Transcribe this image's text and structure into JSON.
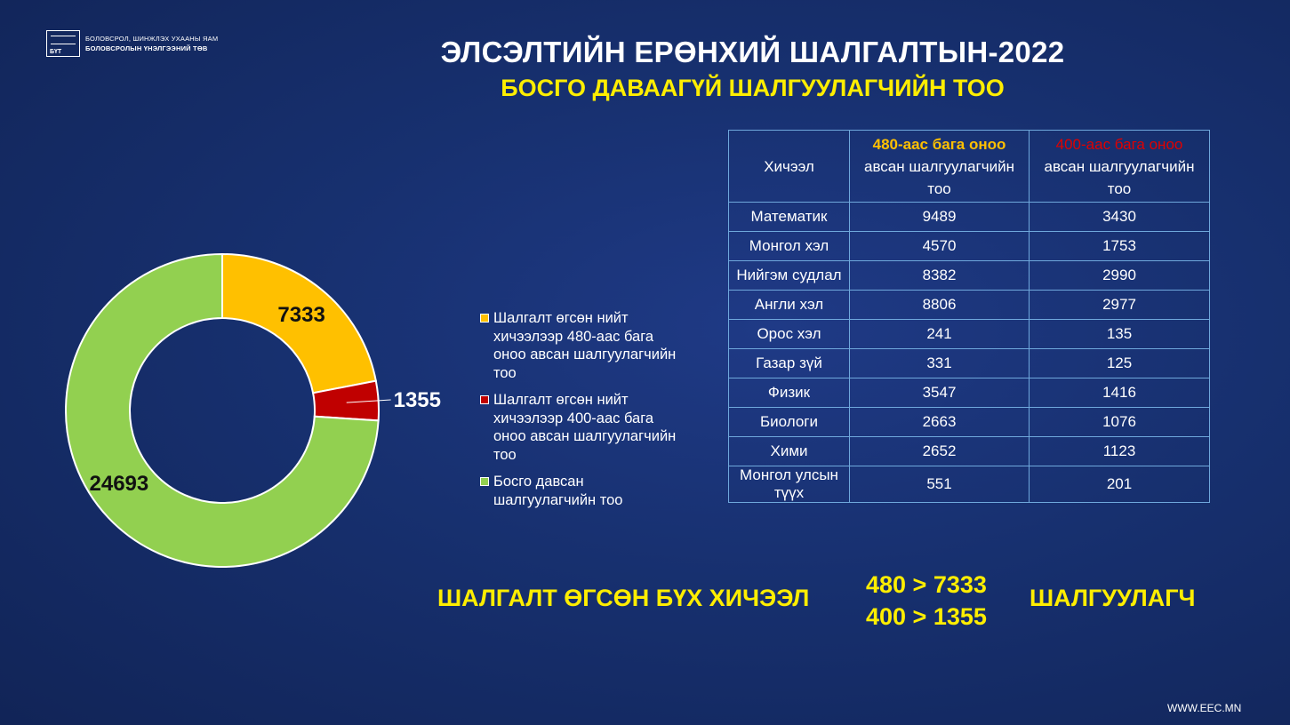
{
  "logo": {
    "mark_text": "БҮТ",
    "line1": "БОЛОВСРОЛ, ШИНЖЛЭХ УХААНЫ ЯАМ",
    "line2": "БОЛОВСРОЛЫН ҮНЭЛГЭЭНИЙ ТӨВ"
  },
  "header": {
    "title": "ЭЛСЭЛТИЙН ЕРӨНХИЙ ШАЛГАЛТЫН-2022",
    "subtitle": "БОСГО ДАВААГҮЙ ШАЛГУУЛАГЧИЙН ТОО"
  },
  "chart_data": {
    "type": "pie",
    "donut": true,
    "start_angle_deg": 0,
    "categories": [
      "Шалгалт өгсөн нийт хичээлээр 480-аас бага оноо авсан шалгуулагчийн тоо",
      "Шалгалт өгсөн нийт хичээлээр 400-аас бага оноо авсан шалгуулагчийн тоо",
      "Босго давсан шалгуулагчийн тоо"
    ],
    "values": [
      7333,
      1355,
      24693
    ],
    "colors": [
      "#ffc000",
      "#c00000",
      "#92d050"
    ],
    "data_labels": [
      "7333",
      "1355",
      "24693"
    ],
    "legend_position": "right"
  },
  "table": {
    "header": {
      "subject": "Хичээл",
      "col480_highlight": "480-аас бага оноо",
      "col480_rest": "авсан шалгуулагчийн тоо",
      "col400_highlight": "400-аас бага оноо",
      "col400_rest": "авсан шалгуулагчийн тоо"
    },
    "rows": [
      {
        "subject": "Математик",
        "v480": "9489",
        "v400": "3430"
      },
      {
        "subject": "Монгол хэл",
        "v480": "4570",
        "v400": "1753"
      },
      {
        "subject": "Нийгэм судлал",
        "v480": "8382",
        "v400": "2990"
      },
      {
        "subject": "Англи хэл",
        "v480": "8806",
        "v400": "2977"
      },
      {
        "subject": "Орос хэл",
        "v480": "241",
        "v400": "135"
      },
      {
        "subject": "Газар зүй",
        "v480": "331",
        "v400": "125"
      },
      {
        "subject": "Физик",
        "v480": "3547",
        "v400": "1416"
      },
      {
        "subject": "Биологи",
        "v480": "2663",
        "v400": "1076"
      },
      {
        "subject": "Хими",
        "v480": "2652",
        "v400": "1123"
      },
      {
        "subject": "Монгол улсын түүх",
        "v480": "551",
        "v400": "201"
      }
    ]
  },
  "summary": {
    "left": "ШАЛГАЛТ ӨГСӨН БҮХ ХИЧЭЭЛ",
    "line1": "480 > 7333",
    "line2": "400 > 1355",
    "right": "ШАЛГУУЛАГЧ"
  },
  "footer": {
    "website": "WWW.EEC.MN"
  }
}
